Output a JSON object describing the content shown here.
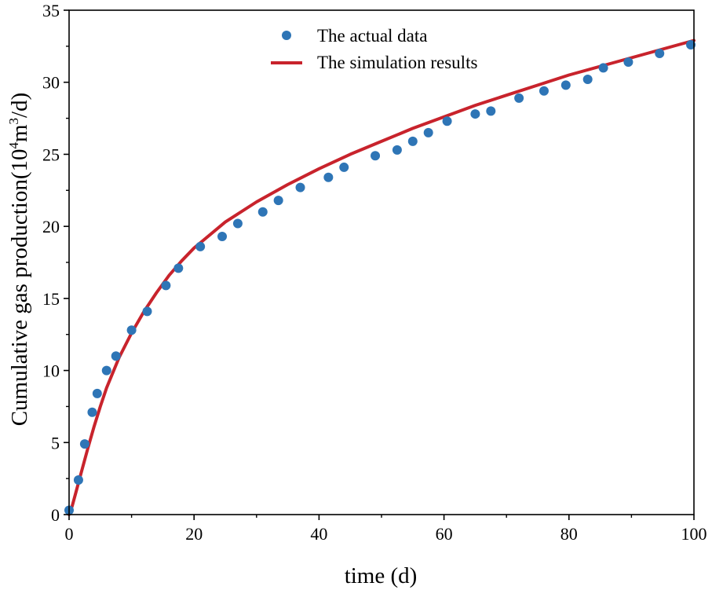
{
  "chart_data": {
    "type": "scatter+line",
    "title": "",
    "xlabel": "time (d)",
    "ylabel_main": "Cumulative gas production(10",
    "ylabel_sup1": "4",
    "ylabel_mid": "m",
    "ylabel_sup2": "3",
    "ylabel_end": "/d)",
    "xlim": [
      0,
      100
    ],
    "ylim": [
      0,
      35
    ],
    "xticks": [
      0,
      20,
      40,
      60,
      80,
      100
    ],
    "yticks": [
      0,
      5,
      10,
      15,
      20,
      25,
      30,
      35
    ],
    "grid": false,
    "legend_position": "top-center",
    "colors": {
      "actual": "#2e75b6",
      "simulation": "#c8232c",
      "axis": "#000000"
    },
    "series": [
      {
        "name": "The actual data",
        "kind": "scatter",
        "x": [
          0,
          1.5,
          2.5,
          3.7,
          4.5,
          6.0,
          7.5,
          10.0,
          12.5,
          15.5,
          17.5,
          21.0,
          24.5,
          27.0,
          31.0,
          33.5,
          37.0,
          41.5,
          44.0,
          49.0,
          52.5,
          55.0,
          57.5,
          60.5,
          65.0,
          67.5,
          72.0,
          76.0,
          79.5,
          83.0,
          85.5,
          89.5,
          94.5,
          99.5
        ],
        "y": [
          0.3,
          2.4,
          4.9,
          7.1,
          8.4,
          10.0,
          11.0,
          12.8,
          14.1,
          15.9,
          17.1,
          18.6,
          19.3,
          20.2,
          21.0,
          21.8,
          22.7,
          23.4,
          24.1,
          24.9,
          25.3,
          25.9,
          26.5,
          27.3,
          27.8,
          28.0,
          28.9,
          29.4,
          29.8,
          30.2,
          31.0,
          31.4,
          32.0,
          32.6
        ]
      },
      {
        "name": "The simulation results",
        "kind": "line",
        "x": [
          0,
          0.5,
          1,
          2,
          3,
          4,
          5,
          6,
          8,
          10,
          12,
          14,
          16,
          18,
          20,
          25,
          30,
          35,
          40,
          45,
          50,
          55,
          60,
          65,
          70,
          75,
          80,
          85,
          90,
          95,
          100
        ],
        "y": [
          0,
          0.6,
          1.4,
          3.0,
          4.6,
          6.1,
          7.5,
          8.8,
          10.9,
          12.6,
          14.1,
          15.4,
          16.6,
          17.6,
          18.5,
          20.3,
          21.7,
          22.9,
          24.0,
          25.0,
          25.9,
          26.8,
          27.6,
          28.4,
          29.1,
          29.8,
          30.5,
          31.1,
          31.7,
          32.3,
          32.9
        ]
      }
    ]
  }
}
